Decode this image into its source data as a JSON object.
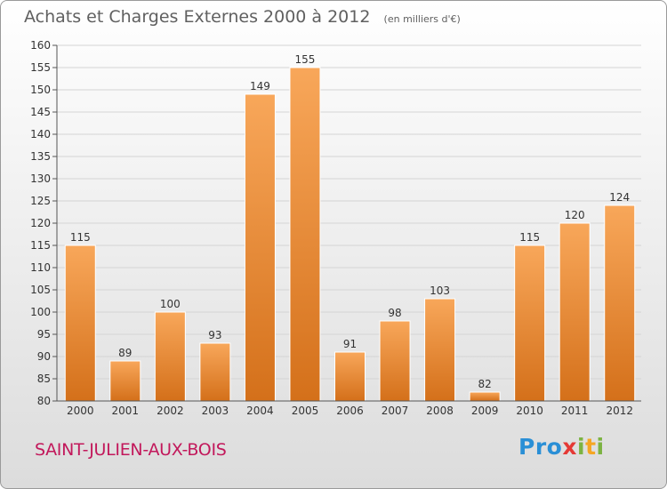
{
  "title": "Achats et Charges Externes 2000 à 2012",
  "subtitle": "(en milliers d'€)",
  "commune": "SAINT-JULIEN-AUX-BOIS",
  "logo": {
    "letters": [
      {
        "char": "P",
        "color": "#2a8fd6"
      },
      {
        "char": "r",
        "color": "#2a8fd6"
      },
      {
        "char": "o",
        "color": "#2a8fd6"
      },
      {
        "char": "x",
        "color": "#e53935"
      },
      {
        "char": "i",
        "color": "#7cb342"
      },
      {
        "char": "t",
        "color": "#f5a623"
      },
      {
        "char": "i",
        "color": "#7cb342"
      }
    ]
  },
  "colors": {
    "bar_light": "#f8a75a",
    "bar_dark": "#d4701a",
    "grid": "#d4d4d4",
    "axis_text": "#333333",
    "title_text": "#606060",
    "commune_text": "#c2185b"
  },
  "chart_data": {
    "type": "bar",
    "title": "Achats et Charges Externes 2000 à 2012",
    "subtitle": "(en milliers d'€)",
    "categories": [
      "2000",
      "2001",
      "2002",
      "2003",
      "2004",
      "2005",
      "2006",
      "2007",
      "2008",
      "2009",
      "2010",
      "2011",
      "2012"
    ],
    "values": [
      115,
      89,
      100,
      93,
      149,
      155,
      91,
      98,
      103,
      82,
      115,
      120,
      124
    ],
    "ylim": [
      80,
      160
    ],
    "yticks": [
      80,
      85,
      90,
      95,
      100,
      105,
      110,
      115,
      120,
      125,
      130,
      135,
      140,
      145,
      150,
      155,
      160
    ],
    "grid": true,
    "data_labels": true,
    "legend": "none"
  }
}
